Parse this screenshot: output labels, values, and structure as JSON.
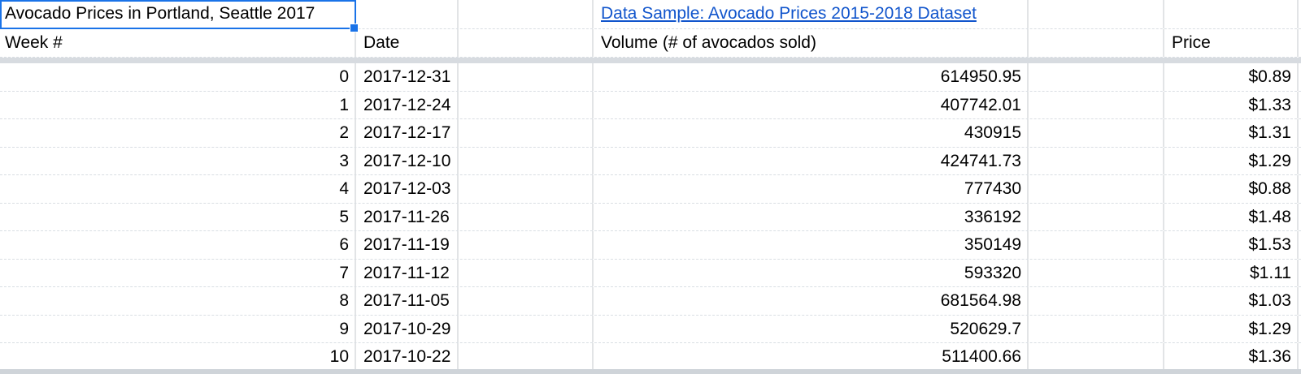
{
  "sheet": {
    "title_cell": "Avocado Prices in Portland, Seattle 2017",
    "link_cell": "Data Sample: Avocado Prices 2015-2018 Dataset",
    "headers": {
      "week": "Week #",
      "date": "Date",
      "volume": "Volume (# of avocados sold)",
      "price": "Price"
    },
    "rows": [
      {
        "week": "0",
        "date": "2017-12-31",
        "volume": "614950.95",
        "price": "$0.89"
      },
      {
        "week": "1",
        "date": "2017-12-24",
        "volume": "407742.01",
        "price": "$1.33"
      },
      {
        "week": "2",
        "date": "2017-12-17",
        "volume": "430915",
        "price": "$1.31"
      },
      {
        "week": "3",
        "date": "2017-12-10",
        "volume": "424741.73",
        "price": "$1.29"
      },
      {
        "week": "4",
        "date": "2017-12-03",
        "volume": "777430",
        "price": "$0.88"
      },
      {
        "week": "5",
        "date": "2017-11-26",
        "volume": "336192",
        "price": "$1.48"
      },
      {
        "week": "6",
        "date": "2017-11-19",
        "volume": "350149",
        "price": "$1.53"
      },
      {
        "week": "7",
        "date": "2017-11-12",
        "volume": "593320",
        "price": "$1.11"
      },
      {
        "week": "8",
        "date": "2017-11-05",
        "volume": "681564.98",
        "price": "$1.03"
      },
      {
        "week": "9",
        "date": "2017-10-29",
        "volume": "520629.7",
        "price": "$1.29"
      },
      {
        "week": "10",
        "date": "2017-10-22",
        "volume": "511400.66",
        "price": "$1.36"
      }
    ],
    "colors": {
      "selection_border": "#1a73e8",
      "link": "#1155cc",
      "gridline_vertical": "#e2e4e6",
      "gridline_horizontal": "#d9dee3",
      "frozen_band": "#d7dbe0",
      "bottom_strip": "#cfd4d9",
      "cell_background": "#ffffff",
      "text": "#000000"
    }
  }
}
